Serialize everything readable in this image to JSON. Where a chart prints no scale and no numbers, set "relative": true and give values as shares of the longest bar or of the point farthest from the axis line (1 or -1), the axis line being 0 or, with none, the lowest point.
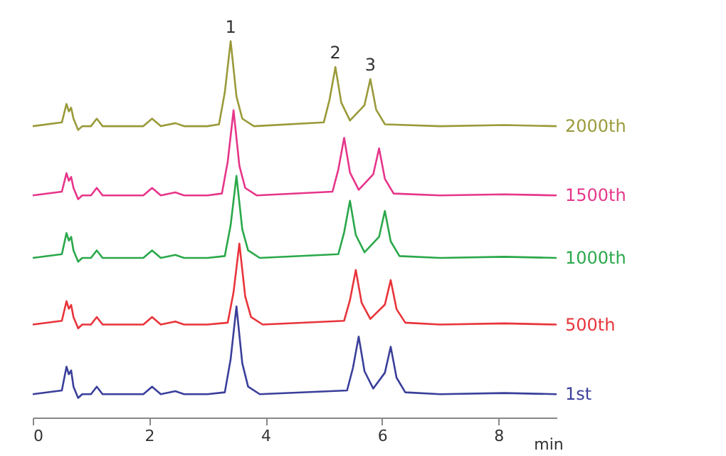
{
  "chart_data": {
    "type": "line",
    "relative": true,
    "xlabel": "min",
    "xlim": [
      0,
      9
    ],
    "xticks": [
      0,
      2,
      4,
      6,
      8
    ],
    "grid": false,
    "legend": false,
    "marker": "none",
    "line_style": "solid",
    "annotations": [
      {
        "text": "1",
        "x": 3.4,
        "y": 1.0
      },
      {
        "text": "2",
        "x": 5.2,
        "y": 0.931
      },
      {
        "text": "3",
        "x": 5.8,
        "y": 0.899
      }
    ],
    "series": [
      {
        "name": "1st",
        "color": "#3a3f9a",
        "x": [
          0,
          0.5,
          0.58,
          0.62,
          0.66,
          0.7,
          0.78,
          0.85,
          1.0,
          1.1,
          1.2,
          1.9,
          2.05,
          2.2,
          2.45,
          2.6,
          3.0,
          3.3,
          3.4,
          3.5,
          3.6,
          3.7,
          3.9,
          5.4,
          5.5,
          5.6,
          5.7,
          5.85,
          6.05,
          6.15,
          6.25,
          6.4,
          7,
          8.1,
          9
        ],
        "values": [
          0.062,
          0.072,
          0.135,
          0.115,
          0.125,
          0.082,
          0.052,
          0.062,
          0.062,
          0.082,
          0.062,
          0.062,
          0.082,
          0.062,
          0.07,
          0.062,
          0.062,
          0.067,
          0.155,
          0.295,
          0.144,
          0.082,
          0.062,
          0.072,
          0.131,
          0.215,
          0.123,
          0.077,
          0.119,
          0.188,
          0.106,
          0.067,
          0.062,
          0.065,
          0.062
        ]
      },
      {
        "name": "500th",
        "color": "#e8343a",
        "x": [
          0,
          0.5,
          0.58,
          0.62,
          0.66,
          0.7,
          0.78,
          0.85,
          1.0,
          1.1,
          1.2,
          1.9,
          2.05,
          2.2,
          2.45,
          2.6,
          3.0,
          3.35,
          3.45,
          3.55,
          3.65,
          3.75,
          3.95,
          5.35,
          5.45,
          5.55,
          5.65,
          5.8,
          6.05,
          6.15,
          6.25,
          6.4,
          7,
          8.1,
          9
        ],
        "values": [
          0.247,
          0.257,
          0.309,
          0.289,
          0.299,
          0.267,
          0.237,
          0.247,
          0.247,
          0.267,
          0.247,
          0.247,
          0.267,
          0.247,
          0.255,
          0.247,
          0.247,
          0.252,
          0.333,
          0.462,
          0.322,
          0.267,
          0.247,
          0.257,
          0.312,
          0.392,
          0.305,
          0.262,
          0.3,
          0.365,
          0.288,
          0.252,
          0.247,
          0.25,
          0.247
        ]
      },
      {
        "name": "1000th",
        "color": "#2aa84a",
        "x": [
          0,
          0.5,
          0.58,
          0.62,
          0.66,
          0.7,
          0.78,
          0.85,
          1.0,
          1.1,
          1.2,
          1.9,
          2.05,
          2.2,
          2.45,
          2.6,
          3.0,
          3.3,
          3.4,
          3.5,
          3.6,
          3.7,
          3.9,
          5.25,
          5.35,
          5.45,
          5.55,
          5.7,
          5.95,
          6.05,
          6.15,
          6.3,
          7,
          8.1,
          9
        ],
        "values": [
          0.424,
          0.434,
          0.49,
          0.47,
          0.48,
          0.444,
          0.414,
          0.424,
          0.424,
          0.444,
          0.424,
          0.424,
          0.444,
          0.424,
          0.432,
          0.424,
          0.424,
          0.429,
          0.511,
          0.642,
          0.5,
          0.444,
          0.424,
          0.434,
          0.492,
          0.576,
          0.485,
          0.439,
          0.48,
          0.549,
          0.468,
          0.429,
          0.424,
          0.427,
          0.424
        ]
      },
      {
        "name": "1500th",
        "color": "#e6358a",
        "x": [
          0,
          0.5,
          0.58,
          0.62,
          0.66,
          0.7,
          0.78,
          0.85,
          1.0,
          1.1,
          1.2,
          1.9,
          2.05,
          2.2,
          2.45,
          2.6,
          3.0,
          3.25,
          3.35,
          3.45,
          3.55,
          3.65,
          3.85,
          5.15,
          5.25,
          5.35,
          5.45,
          5.6,
          5.85,
          5.95,
          6.05,
          6.2,
          7,
          8.1,
          9
        ],
        "values": [
          0.59,
          0.6,
          0.649,
          0.629,
          0.639,
          0.61,
          0.58,
          0.59,
          0.59,
          0.61,
          0.59,
          0.59,
          0.61,
          0.59,
          0.598,
          0.59,
          0.59,
          0.595,
          0.68,
          0.816,
          0.669,
          0.61,
          0.59,
          0.6,
          0.659,
          0.743,
          0.651,
          0.605,
          0.646,
          0.715,
          0.634,
          0.595,
          0.59,
          0.593,
          0.59
        ]
      },
      {
        "name": "2000th",
        "color": "#9a9a3a",
        "x": [
          0,
          0.5,
          0.58,
          0.62,
          0.66,
          0.7,
          0.78,
          0.85,
          1.0,
          1.1,
          1.2,
          1.9,
          2.05,
          2.2,
          2.45,
          2.6,
          3.0,
          3.2,
          3.3,
          3.4,
          3.5,
          3.6,
          3.8,
          5.0,
          5.1,
          5.2,
          5.3,
          5.45,
          5.7,
          5.8,
          5.9,
          6.05,
          7,
          8.1,
          9
        ],
        "values": [
          0.774,
          0.784,
          0.833,
          0.813,
          0.823,
          0.794,
          0.764,
          0.774,
          0.774,
          0.794,
          0.774,
          0.774,
          0.794,
          0.774,
          0.782,
          0.774,
          0.774,
          0.779,
          0.864,
          1.0,
          0.853,
          0.794,
          0.774,
          0.784,
          0.845,
          0.931,
          0.837,
          0.789,
          0.83,
          0.899,
          0.818,
          0.779,
          0.774,
          0.777,
          0.774
        ]
      }
    ]
  }
}
